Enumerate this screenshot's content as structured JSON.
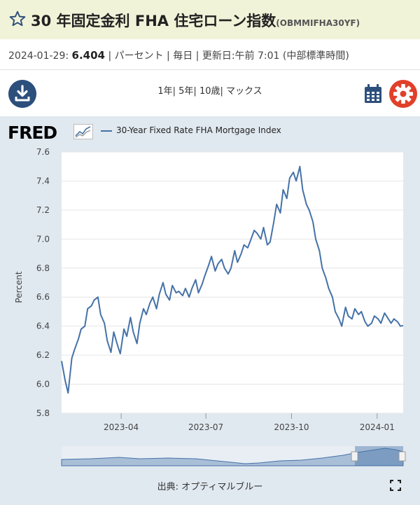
{
  "header": {
    "title": "30 年固定金利 FHA 住宅ローン指数",
    "series_id": "(OBMMIFHA30YF)"
  },
  "info": {
    "date": "2024-01-29:",
    "value": "6.404",
    "rest": "| パーセント | 毎日 | 更新日:午前 7:01 (中部標準時間)"
  },
  "toolbar": {
    "ranges": [
      "1年",
      "5年",
      "10歳",
      "マックス"
    ],
    "separator": "|"
  },
  "logo": {
    "text": "FRED"
  },
  "source_text": "出典: オプティマルブルー",
  "colors": {
    "series": "#4572a7",
    "accent_blue": "#2d4f7c",
    "settings": "#e0402a",
    "title_bg": "#f1f3d9",
    "panel_bg": "#e1e9f0"
  },
  "icons": {
    "favorite": "star-icon",
    "download": "download-icon",
    "calendar": "calendar-icon",
    "settings": "gear-icon",
    "fullscreen": "fullscreen-icon"
  },
  "chart_data": {
    "type": "line",
    "ylabel": "Percent",
    "ylim": [
      5.8,
      7.6
    ],
    "yticks": [
      "5.8",
      "6.0",
      "6.2",
      "6.4",
      "6.6",
      "6.8",
      "7.0",
      "7.2",
      "7.4",
      "7.6"
    ],
    "xticks": [
      {
        "label": "2023-04",
        "date": "2023-04-01"
      },
      {
        "label": "2023-07",
        "date": "2023-07-01"
      },
      {
        "label": "2023-10",
        "date": "2023-10-01"
      },
      {
        "label": "2024-01",
        "date": "2024-01-01"
      }
    ],
    "xlim": [
      "2023-01-27",
      "2024-01-29"
    ],
    "grid": true,
    "series": [
      {
        "name": "30-Year Fixed Rate FHA Mortgage Index",
        "x": [
          "2023-01-27",
          "2023-01-31",
          "2023-02-03",
          "2023-02-07",
          "2023-02-10",
          "2023-02-14",
          "2023-02-17",
          "2023-02-21",
          "2023-02-24",
          "2023-02-28",
          "2023-03-03",
          "2023-03-07",
          "2023-03-10",
          "2023-03-14",
          "2023-03-17",
          "2023-03-21",
          "2023-03-24",
          "2023-03-28",
          "2023-03-31",
          "2023-04-04",
          "2023-04-07",
          "2023-04-11",
          "2023-04-14",
          "2023-04-18",
          "2023-04-21",
          "2023-04-25",
          "2023-04-28",
          "2023-05-02",
          "2023-05-05",
          "2023-05-09",
          "2023-05-12",
          "2023-05-16",
          "2023-05-19",
          "2023-05-23",
          "2023-05-26",
          "2023-05-30",
          "2023-06-02",
          "2023-06-06",
          "2023-06-09",
          "2023-06-13",
          "2023-06-16",
          "2023-06-20",
          "2023-06-23",
          "2023-06-27",
          "2023-06-30",
          "2023-07-04",
          "2023-07-07",
          "2023-07-11",
          "2023-07-14",
          "2023-07-18",
          "2023-07-21",
          "2023-07-25",
          "2023-07-28",
          "2023-08-01",
          "2023-08-04",
          "2023-08-08",
          "2023-08-11",
          "2023-08-15",
          "2023-08-18",
          "2023-08-22",
          "2023-08-25",
          "2023-08-29",
          "2023-09-01",
          "2023-09-05",
          "2023-09-08",
          "2023-09-12",
          "2023-09-15",
          "2023-09-19",
          "2023-09-22",
          "2023-09-26",
          "2023-09-29",
          "2023-10-03",
          "2023-10-06",
          "2023-10-10",
          "2023-10-13",
          "2023-10-17",
          "2023-10-20",
          "2023-10-24",
          "2023-10-27",
          "2023-10-31",
          "2023-11-03",
          "2023-11-07",
          "2023-11-10",
          "2023-11-14",
          "2023-11-17",
          "2023-11-21",
          "2023-11-24",
          "2023-11-28",
          "2023-12-01",
          "2023-12-05",
          "2023-12-08",
          "2023-12-12",
          "2023-12-15",
          "2023-12-19",
          "2023-12-22",
          "2023-12-26",
          "2023-12-29",
          "2024-01-02",
          "2024-01-05",
          "2024-01-09",
          "2024-01-12",
          "2024-01-16",
          "2024-01-19",
          "2024-01-23",
          "2024-01-26",
          "2024-01-29"
        ],
        "y": [
          6.16,
          6.02,
          5.94,
          6.18,
          6.24,
          6.31,
          6.38,
          6.4,
          6.52,
          6.54,
          6.58,
          6.6,
          6.48,
          6.42,
          6.3,
          6.22,
          6.36,
          6.27,
          6.21,
          6.38,
          6.33,
          6.46,
          6.36,
          6.28,
          6.42,
          6.52,
          6.48,
          6.56,
          6.6,
          6.52,
          6.62,
          6.7,
          6.62,
          6.58,
          6.68,
          6.63,
          6.64,
          6.61,
          6.66,
          6.6,
          6.66,
          6.72,
          6.63,
          6.69,
          6.75,
          6.82,
          6.88,
          6.78,
          6.83,
          6.86,
          6.8,
          6.76,
          6.8,
          6.92,
          6.84,
          6.9,
          6.96,
          6.94,
          6.99,
          7.06,
          7.04,
          7.0,
          7.08,
          6.96,
          6.98,
          7.12,
          7.24,
          7.18,
          7.34,
          7.28,
          7.42,
          7.46,
          7.4,
          7.5,
          7.34,
          7.24,
          7.2,
          7.12,
          7.0,
          6.92,
          6.8,
          6.73,
          6.66,
          6.6,
          6.5,
          6.45,
          6.4,
          6.53,
          6.47,
          6.45,
          6.52,
          6.48,
          6.5,
          6.43,
          6.4,
          6.42,
          6.47,
          6.45,
          6.42,
          6.49,
          6.46,
          6.42,
          6.45,
          6.43,
          6.4,
          6.404
        ]
      }
    ]
  }
}
